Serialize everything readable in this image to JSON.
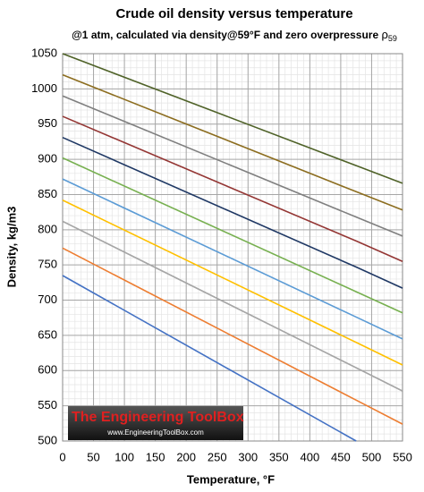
{
  "chart_data": {
    "type": "line",
    "title": "Crude oil density versus temperature",
    "subtitle": "@1 atm, calculated via density@59°F and zero overpressure",
    "subtitle_symbol": "ρ",
    "subtitle_subscript": "59",
    "x_label": "Temperature, °F",
    "y_label": "Density, kg/m3",
    "annotations": [
      "The Engineering ToolBox",
      "www.EngineeringToolBox.com"
    ],
    "x": [
      0,
      475,
      550
    ],
    "series": [
      {
        "color": "#4f6228",
        "values": [
          1050,
          891,
          866
        ]
      },
      {
        "color": "#8c6d1f",
        "values": [
          1020,
          854,
          828
        ]
      },
      {
        "color": "#7f7f7f",
        "values": [
          990,
          818,
          791
        ]
      },
      {
        "color": "#943634",
        "values": [
          961,
          784,
          755
        ]
      },
      {
        "color": "#1f3864",
        "values": [
          931,
          747,
          717
        ]
      },
      {
        "color": "#77b050",
        "values": [
          902,
          712,
          682
        ]
      },
      {
        "color": "#5b9bd5",
        "values": [
          872,
          676,
          645
        ]
      },
      {
        "color": "#ffc000",
        "values": [
          842,
          640,
          608
        ]
      },
      {
        "color": "#a5a5a5",
        "values": [
          812,
          604,
          571
        ]
      },
      {
        "color": "#ed7d31",
        "values": [
          774,
          558,
          524
        ]
      },
      {
        "color": "#4472c4",
        "values": [
          735,
          500,
          null
        ]
      }
    ],
    "xlim": [
      0,
      550
    ],
    "xticks": [
      0,
      50,
      100,
      150,
      200,
      250,
      300,
      350,
      400,
      450,
      500,
      550
    ],
    "ylim": [
      500,
      1050
    ],
    "yticks": [
      500,
      550,
      600,
      650,
      700,
      750,
      800,
      850,
      900,
      950,
      1000,
      1050
    ],
    "grid": true,
    "minor_grid": {
      "x": 10,
      "y": 10
    }
  }
}
